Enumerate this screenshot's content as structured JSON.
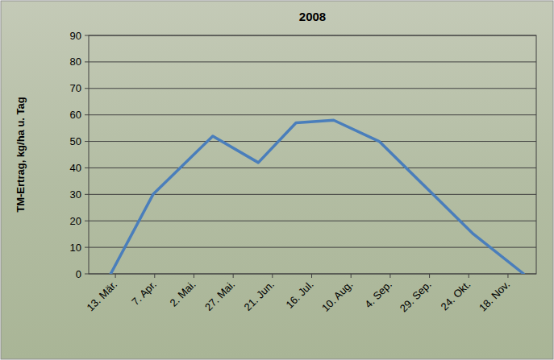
{
  "chart_data": {
    "type": "line",
    "title": "2008",
    "y_label": "TM-Ertrag, kg/ha u. Tag",
    "x": [
      "2008-03-10",
      "2008-04-06",
      "2008-05-14",
      "2008-06-12",
      "2008-07-06",
      "2008-07-30",
      "2008-08-28",
      "2008-10-27",
      "2008-11-28"
    ],
    "values": [
      0,
      30,
      52,
      42,
      57,
      58,
      50,
      15,
      0
    ],
    "color": "#4a7ebb",
    "xlim": [
      "2008-02-25",
      "2008-12-06"
    ],
    "xticks": [
      {
        "value": "2008-03-13",
        "label": "13. Mär."
      },
      {
        "value": "2008-04-07",
        "label": "7. Apr."
      },
      {
        "value": "2008-05-02",
        "label": "2. Mai."
      },
      {
        "value": "2008-05-27",
        "label": "27. Mai."
      },
      {
        "value": "2008-06-21",
        "label": "21. Jun."
      },
      {
        "value": "2008-07-16",
        "label": "16. Jul."
      },
      {
        "value": "2008-08-10",
        "label": "10. Aug."
      },
      {
        "value": "2008-09-04",
        "label": "4. Sep."
      },
      {
        "value": "2008-09-29",
        "label": "29. Sep."
      },
      {
        "value": "2008-10-24",
        "label": "24. Okt."
      },
      {
        "value": "2008-11-18",
        "label": "18. Nov."
      }
    ],
    "ylim": [
      0,
      90
    ],
    "yticks": [
      0,
      10,
      20,
      30,
      40,
      50,
      60,
      70,
      80,
      90
    ],
    "grid": true
  }
}
